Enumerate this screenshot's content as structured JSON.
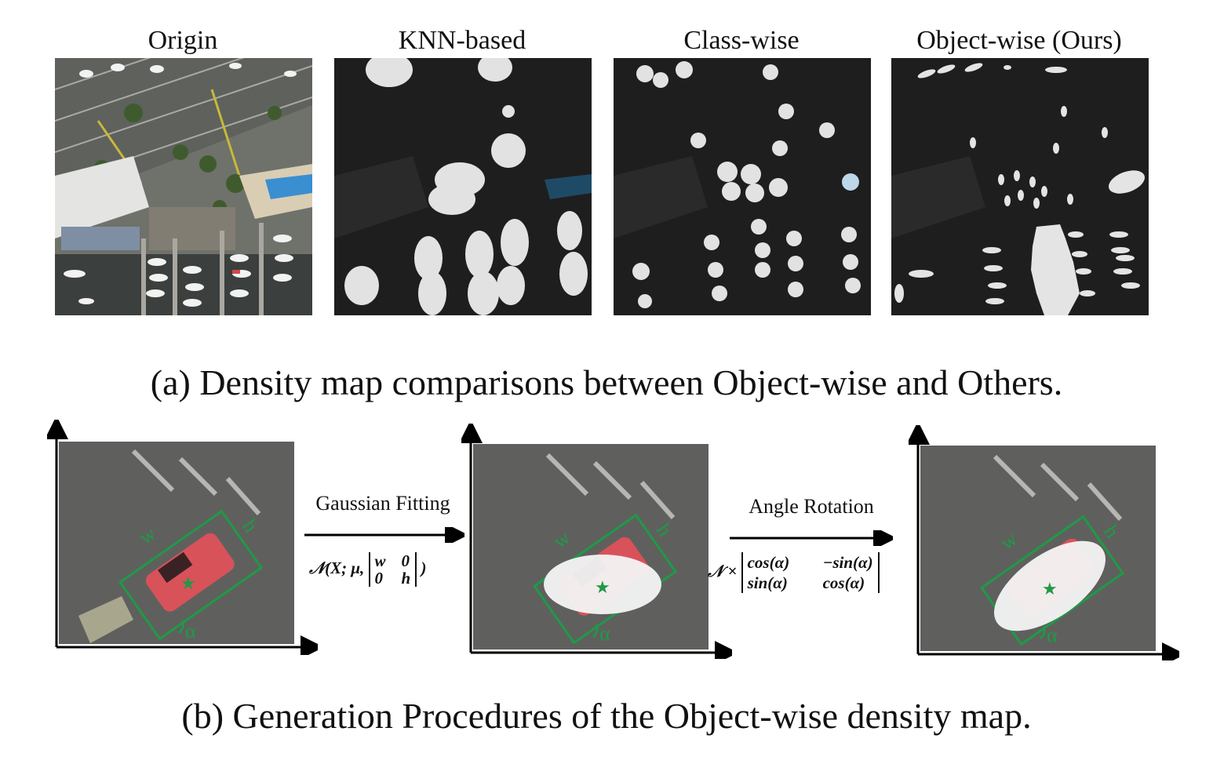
{
  "part_a": {
    "panels": [
      {
        "title": "Origin"
      },
      {
        "title": "KNN-based"
      },
      {
        "title": "Class-wise"
      },
      {
        "title": "Object-wise (Ours)"
      }
    ],
    "caption": "(a)  Density map comparisons between Object-wise and Others."
  },
  "part_b": {
    "box_labels": {
      "w": "w",
      "h": "h",
      "alpha": "α"
    },
    "center_marker": "★",
    "step1": {
      "label": "Gaussian Fitting",
      "formula_prefix": "𝒩(X; μ, ",
      "matrix": [
        "w",
        "0",
        "0",
        "h"
      ],
      "formula_suffix": ")"
    },
    "step2": {
      "label": "Angle Rotation",
      "formula_prefix": "𝒩 ×",
      "matrix": [
        "cos(α)",
        "−sin(α)",
        "sin(α)",
        "cos(α)"
      ]
    },
    "caption": "(b) Generation Procedures of the Object-wise density map."
  },
  "colors": {
    "box": "#1e9a47",
    "star": "#1e9a47",
    "car": "#d8525a",
    "density_blob": "#e2e2e2",
    "dark_bg": "#1e1e1e",
    "parking_lot": "#5b5c5a"
  }
}
